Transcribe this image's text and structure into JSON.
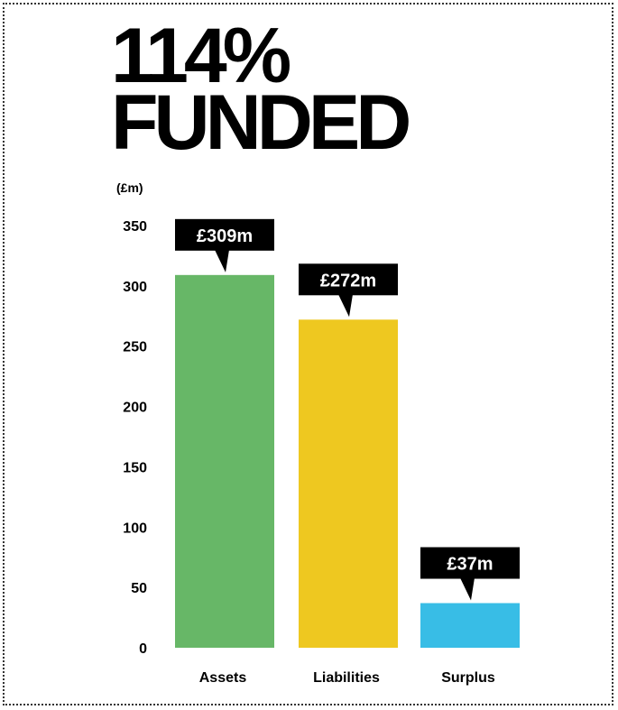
{
  "headline": {
    "line1": "114%",
    "line2": "FUNDED"
  },
  "chart_data": {
    "type": "bar",
    "unit_label": "(£m)",
    "categories": [
      "Assets",
      "Liabilities",
      "Surplus"
    ],
    "values": [
      309,
      272,
      37
    ],
    "data_labels": [
      "£309m",
      "£272m",
      "£37m"
    ],
    "colors": [
      "#67b767",
      "#eec820",
      "#38bde6"
    ],
    "yticks": [
      0,
      50,
      100,
      150,
      200,
      250,
      300,
      350
    ],
    "ylim": [
      0,
      350
    ],
    "title": "",
    "xlabel": "",
    "ylabel": "(£m)",
    "grid": false,
    "legend": "none"
  }
}
